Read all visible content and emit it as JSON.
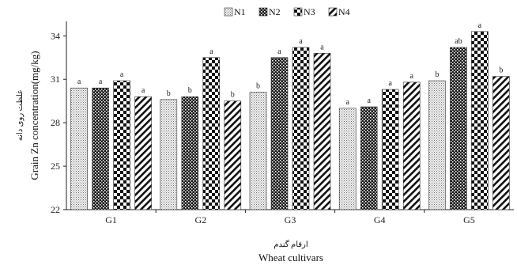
{
  "chart_data": {
    "type": "bar",
    "categories": [
      "G1",
      "G2",
      "G3",
      "G4",
      "G5"
    ],
    "series": [
      {
        "name": "N1",
        "values": [
          30.4,
          29.6,
          30.1,
          29.0,
          30.9
        ],
        "letters": [
          "a",
          "b",
          "b",
          "a",
          "b"
        ]
      },
      {
        "name": "N2",
        "values": [
          30.4,
          29.8,
          32.5,
          29.1,
          33.2
        ],
        "letters": [
          "a",
          "b",
          "a",
          "a",
          "ab"
        ]
      },
      {
        "name": "N3",
        "values": [
          30.9,
          32.5,
          33.2,
          30.3,
          34.3
        ],
        "letters": [
          "a",
          "a",
          "a",
          "a",
          "a"
        ]
      },
      {
        "name": "N4",
        "values": [
          29.8,
          29.5,
          32.8,
          30.8,
          31.2
        ],
        "letters": [
          "a",
          "b",
          "a",
          "a",
          "b"
        ]
      }
    ],
    "ylim": [
      22,
      35
    ],
    "yticks": [
      "22",
      "25",
      "28",
      "31",
      "34"
    ],
    "ylabel": "Grain Zn concentration(mg/kg)",
    "ylabel_fa": "غلظت روی دانه",
    "xlabel": "Wheat cultivars",
    "xlabel_fa": "ارقام گندم",
    "legend_position": "top-center",
    "grid": false
  }
}
